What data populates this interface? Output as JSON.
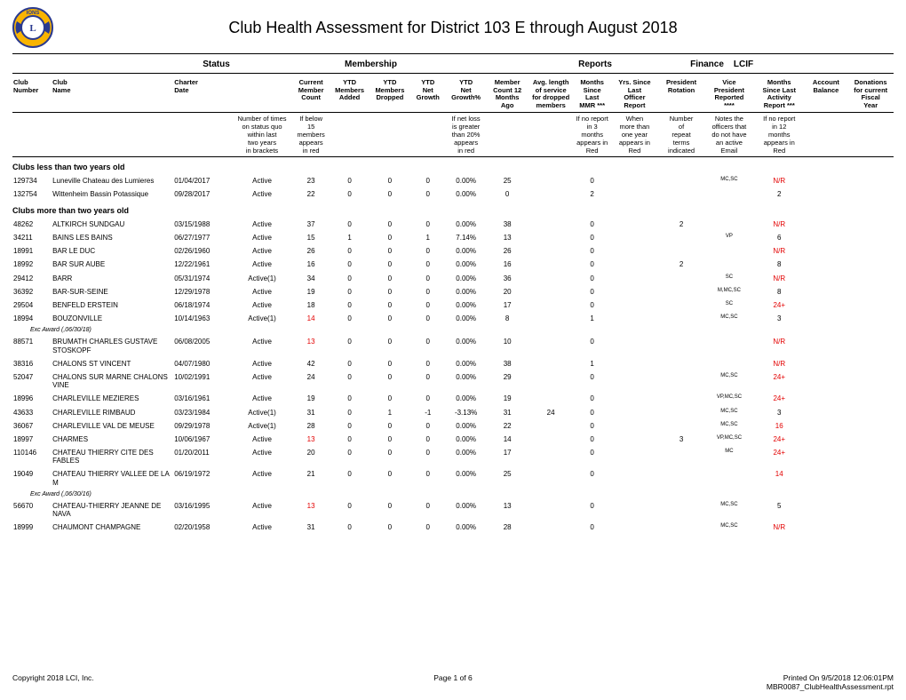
{
  "title": "Club Health Assessment for District 103 E through August 2018",
  "groups": {
    "status": "Status",
    "membership": "Membership",
    "reports": "Reports",
    "finance": "Finance",
    "lcif": "LCIF"
  },
  "columns": {
    "club_number": "Club\nNumber",
    "club_name": "Club\nName",
    "charter_date": "Charter\nDate",
    "status_blank": "",
    "member_count": "Current\nMember\nCount",
    "ytd_added": "YTD\nMembers\nAdded",
    "ytd_dropped": "YTD\nMembers\nDropped",
    "ytd_net_growth": "YTD\nNet\nGrowth",
    "ytd_net_growthp": "YTD\nNet\nGrowth%",
    "m12": "Member\nCount 12\nMonths\nAgo",
    "avg_len": "Avg. length\nof service\nfor dropped\nmembers",
    "mmr": "Months\nSince\nLast\nMMR ***",
    "officer": "Yrs. Since\nLast\nOfficer\nReport",
    "pres_rot": "President\nRotation",
    "vp": "Vice\nPresident\nReported\n****",
    "activity": "Months\nSince Last\nActivity\nReport ***",
    "account": "Account\nBalance",
    "donations": "Donations\nfor current\nFiscal\nYear"
  },
  "legend": {
    "status": "Number of times\non status quo\nwithin last\ntwo years\nin brackets",
    "member_count": "If below\n15\nmembers\nappears\nin red",
    "growthp": "If net loss\nis greater\nthan 20%\nappears\nin red",
    "mmr": "If no report\nin 3\nmonths\nappears in\nRed",
    "officer": "When\nmore than\none year\nappears in\nRed",
    "pres_rot": "Number\nof\nrepeat\nterms\nindicated",
    "vp": "Notes the\nofficers that\ndo not have\nan active\nEmail",
    "activity": "If no report\nin 12\nmonths\nappears in\nRed"
  },
  "sections": [
    {
      "title": "Clubs less than two years old",
      "rows": [
        {
          "num": "129734",
          "name": "Luneville Chateau des Lumieres",
          "chart": "01/04/2017",
          "stat": "Active",
          "mc": "23",
          "add": "0",
          "drop": "0",
          "ng": "0",
          "ngp": "0.00%",
          "m12": "25",
          "avg": "",
          "mmr": "0",
          "off": "",
          "prot": "",
          "vp": "MC,SC",
          "vp_sup": true,
          "act": "N/R",
          "act_red": true,
          "acct": "",
          "don": ""
        },
        {
          "num": "132754",
          "name": "Wittenheim Bassin Potassique",
          "chart": "09/28/2017",
          "stat": "Active",
          "mc": "22",
          "add": "0",
          "drop": "0",
          "ng": "0",
          "ngp": "0.00%",
          "m12": "0",
          "avg": "",
          "mmr": "2",
          "off": "",
          "prot": "",
          "vp": "",
          "act": "2",
          "acct": "",
          "don": ""
        }
      ]
    },
    {
      "title": "Clubs more than two years old",
      "rows": [
        {
          "num": "48262",
          "name": "ALTKIRCH SUNDGAU",
          "chart": "03/15/1988",
          "stat": "Active",
          "mc": "37",
          "add": "0",
          "drop": "0",
          "ng": "0",
          "ngp": "0.00%",
          "m12": "38",
          "avg": "",
          "mmr": "0",
          "off": "",
          "prot": "2",
          "vp": "",
          "act": "N/R",
          "act_red": true
        },
        {
          "num": "34211",
          "name": "BAINS LES BAINS",
          "chart": "06/27/1977",
          "stat": "Active",
          "mc": "15",
          "add": "1",
          "drop": "0",
          "ng": "1",
          "ngp": "7.14%",
          "m12": "13",
          "avg": "",
          "mmr": "0",
          "off": "",
          "prot": "",
          "vp": "VP",
          "vp_sup": true,
          "act": "6"
        },
        {
          "num": "18991",
          "name": "BAR LE DUC",
          "chart": "02/26/1960",
          "stat": "Active",
          "mc": "26",
          "add": "0",
          "drop": "0",
          "ng": "0",
          "ngp": "0.00%",
          "m12": "26",
          "avg": "",
          "mmr": "0",
          "off": "",
          "prot": "",
          "vp": "",
          "act": "N/R",
          "act_red": true
        },
        {
          "num": "18992",
          "name": "BAR SUR AUBE",
          "chart": "12/22/1961",
          "stat": "Active",
          "mc": "16",
          "add": "0",
          "drop": "0",
          "ng": "0",
          "ngp": "0.00%",
          "m12": "16",
          "avg": "",
          "mmr": "0",
          "off": "",
          "prot": "2",
          "vp": "",
          "act": "8"
        },
        {
          "num": "29412",
          "name": "BARR",
          "chart": "05/31/1974",
          "stat": "Active(1)",
          "mc": "34",
          "add": "0",
          "drop": "0",
          "ng": "0",
          "ngp": "0.00%",
          "m12": "36",
          "avg": "",
          "mmr": "0",
          "off": "",
          "prot": "",
          "vp": "SC",
          "vp_sup": true,
          "act": "N/R",
          "act_red": true
        },
        {
          "num": "36392",
          "name": "BAR-SUR-SEINE",
          "chart": "12/29/1978",
          "stat": "Active",
          "mc": "19",
          "add": "0",
          "drop": "0",
          "ng": "0",
          "ngp": "0.00%",
          "m12": "20",
          "avg": "",
          "mmr": "0",
          "off": "",
          "prot": "",
          "vp": "M,MC,SC",
          "vp_sup": true,
          "act": "8"
        },
        {
          "num": "29504",
          "name": "BENFELD ERSTEIN",
          "chart": "06/18/1974",
          "stat": "Active",
          "mc": "18",
          "add": "0",
          "drop": "0",
          "ng": "0",
          "ngp": "0.00%",
          "m12": "17",
          "avg": "",
          "mmr": "0",
          "off": "",
          "prot": "",
          "vp": "SC",
          "vp_sup": true,
          "act": "24+",
          "act_red": true
        },
        {
          "num": "18994",
          "name": "BOUZONVILLE",
          "chart": "10/14/1963",
          "stat": "Active(1)",
          "mc": "14",
          "mc_red": true,
          "add": "0",
          "drop": "0",
          "ng": "0",
          "ngp": "0.00%",
          "m12": "8",
          "avg": "",
          "mmr": "1",
          "off": "",
          "prot": "",
          "vp": "MC,SC",
          "vp_sup": true,
          "act": "3",
          "note": "Exc Award (,06/30/18)"
        },
        {
          "num": "88571",
          "name": "BRUMATH CHARLES GUSTAVE STOSKOPF",
          "chart": "06/08/2005",
          "stat": "Active",
          "mc": "13",
          "mc_red": true,
          "add": "0",
          "drop": "0",
          "ng": "0",
          "ngp": "0.00%",
          "m12": "10",
          "avg": "",
          "mmr": "0",
          "off": "",
          "prot": "",
          "vp": "",
          "act": "N/R",
          "act_red": true
        },
        {
          "num": "38316",
          "name": "CHALONS ST VINCENT",
          "chart": "04/07/1980",
          "stat": "Active",
          "mc": "42",
          "add": "0",
          "drop": "0",
          "ng": "0",
          "ngp": "0.00%",
          "m12": "38",
          "avg": "",
          "mmr": "1",
          "off": "",
          "prot": "",
          "vp": "",
          "act": "N/R",
          "act_red": true
        },
        {
          "num": "52047",
          "name": "CHALONS SUR MARNE CHALONS VINE",
          "chart": "10/02/1991",
          "stat": "Active",
          "mc": "24",
          "add": "0",
          "drop": "0",
          "ng": "0",
          "ngp": "0.00%",
          "m12": "29",
          "avg": "",
          "mmr": "0",
          "off": "",
          "prot": "",
          "vp": "MC,SC",
          "vp_sup": true,
          "act": "24+",
          "act_red": true
        },
        {
          "num": "18996",
          "name": "CHARLEVILLE MEZIERES",
          "chart": "03/16/1961",
          "stat": "Active",
          "mc": "19",
          "add": "0",
          "drop": "0",
          "ng": "0",
          "ngp": "0.00%",
          "m12": "19",
          "avg": "",
          "mmr": "0",
          "off": "",
          "prot": "",
          "vp": "VP,MC,SC",
          "vp_sup": true,
          "act": "24+",
          "act_red": true
        },
        {
          "num": "43633",
          "name": "CHARLEVILLE RIMBAUD",
          "chart": "03/23/1984",
          "stat": "Active(1)",
          "mc": "31",
          "add": "0",
          "drop": "1",
          "ng": "-1",
          "ngp": "-3.13%",
          "m12": "31",
          "avg": "24",
          "mmr": "0",
          "off": "",
          "prot": "",
          "vp": "MC,SC",
          "vp_sup": true,
          "act": "3"
        },
        {
          "num": "36067",
          "name": "CHARLEVILLE VAL DE MEUSE",
          "chart": "09/29/1978",
          "stat": "Active(1)",
          "mc": "28",
          "add": "0",
          "drop": "0",
          "ng": "0",
          "ngp": "0.00%",
          "m12": "22",
          "avg": "",
          "mmr": "0",
          "off": "",
          "prot": "",
          "vp": "MC,SC",
          "vp_sup": true,
          "act": "16",
          "act_red": true
        },
        {
          "num": "18997",
          "name": "CHARMES",
          "chart": "10/06/1967",
          "stat": "Active",
          "mc": "13",
          "mc_red": true,
          "add": "0",
          "drop": "0",
          "ng": "0",
          "ngp": "0.00%",
          "m12": "14",
          "avg": "",
          "mmr": "0",
          "off": "",
          "prot": "3",
          "vp": "VP,MC,SC",
          "vp_sup": true,
          "act": "24+",
          "act_red": true
        },
        {
          "num": "110146",
          "name": "CHATEAU THIERRY CITE DES FABLES",
          "chart": "01/20/2011",
          "stat": "Active",
          "mc": "20",
          "add": "0",
          "drop": "0",
          "ng": "0",
          "ngp": "0.00%",
          "m12": "17",
          "avg": "",
          "mmr": "0",
          "off": "",
          "prot": "",
          "vp": "MC",
          "vp_sup": true,
          "act": "24+",
          "act_red": true
        },
        {
          "num": "19049",
          "name": "CHATEAU THIERRY VALLEE DE LA M",
          "chart": "06/19/1972",
          "stat": "Active",
          "mc": "21",
          "add": "0",
          "drop": "0",
          "ng": "0",
          "ngp": "0.00%",
          "m12": "25",
          "avg": "",
          "mmr": "0",
          "off": "",
          "prot": "",
          "vp": "",
          "act": "14",
          "act_red": true,
          "note": "Exc Award (,06/30/16)"
        },
        {
          "num": "56670",
          "name": "CHATEAU-THIERRY JEANNE DE NAVA",
          "chart": "03/16/1995",
          "stat": "Active",
          "mc": "13",
          "mc_red": true,
          "add": "0",
          "drop": "0",
          "ng": "0",
          "ngp": "0.00%",
          "m12": "13",
          "avg": "",
          "mmr": "0",
          "off": "",
          "prot": "",
          "vp": "MC,SC",
          "vp_sup": true,
          "act": "5"
        },
        {
          "num": "18999",
          "name": "CHAUMONT CHAMPAGNE",
          "chart": "02/20/1958",
          "stat": "Active",
          "mc": "31",
          "add": "0",
          "drop": "0",
          "ng": "0",
          "ngp": "0.00%",
          "m12": "28",
          "avg": "",
          "mmr": "0",
          "off": "",
          "prot": "",
          "vp": "MC,SC",
          "vp_sup": true,
          "act": "N/R",
          "act_red": true
        }
      ]
    }
  ],
  "footer": {
    "left": "Copyright 2018 LCI, Inc.",
    "center": "Page 1 of 6",
    "right1": "Printed On  9/5/2018  12:06:01PM",
    "right2": "MBR0087_ClubHealthAssessment.rpt"
  },
  "colors": {
    "red": "#e30000"
  }
}
